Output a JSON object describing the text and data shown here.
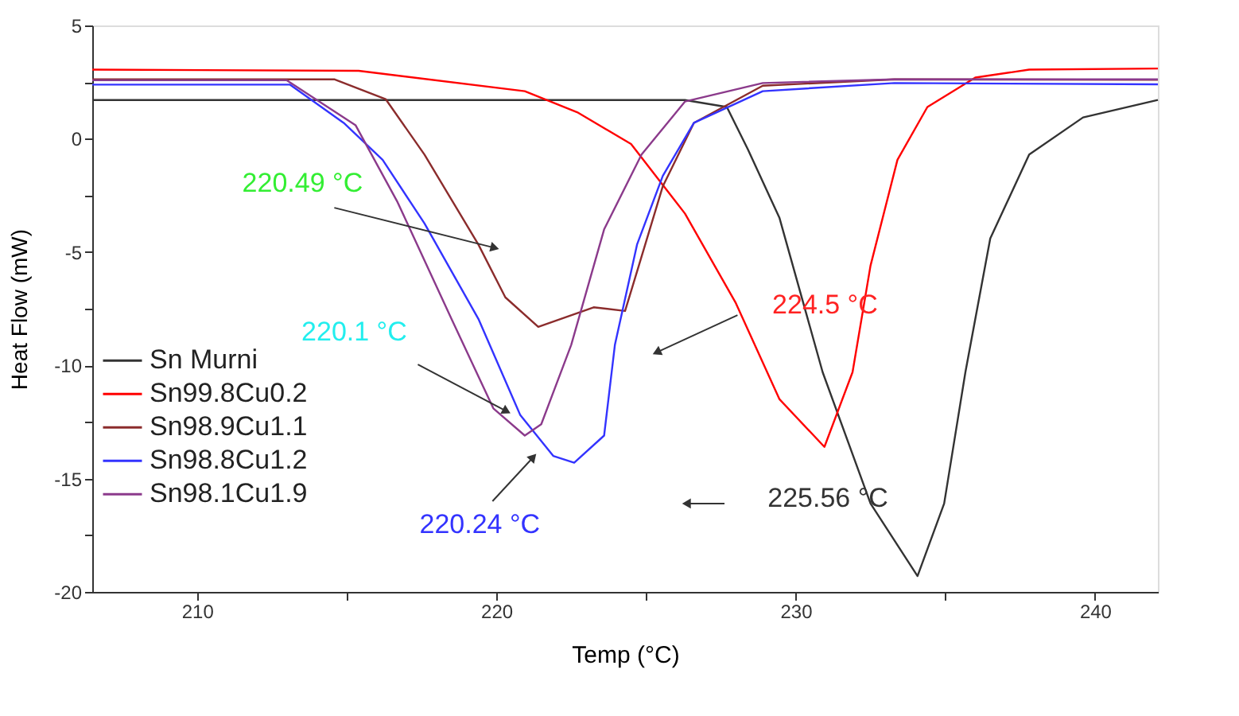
{
  "chart_data": {
    "type": "line",
    "xlabel": "Temp (°C)",
    "ylabel": "Heat Flow (mW)",
    "xlim": [
      206.5,
      242.1
    ],
    "ylim": [
      -20,
      5
    ],
    "xticks": [
      210,
      {
        "value": 215,
        "label": null
      },
      220,
      {
        "value": 225,
        "label": null
      },
      230,
      {
        "value": 235,
        "label": null
      },
      240
    ],
    "yticks": [
      5,
      {
        "value": 2.5,
        "label": null
      },
      0,
      {
        "value": -2.5,
        "label": null
      },
      -5,
      {
        "value": -7.5,
        "label": null
      },
      -10,
      {
        "value": -12.5,
        "label": null
      },
      -15,
      {
        "value": -17.5,
        "label": null
      },
      -20
    ],
    "grid": false,
    "legend": "left",
    "marker": "none",
    "line_style": "solid",
    "series": [
      {
        "name": "Sn Murni",
        "color": "#333333",
        "x": [
          206.5,
          215,
          222,
          226.3,
          227.7,
          228.4,
          229.46,
          230.9,
          232.5,
          234.07,
          234.96,
          235.67,
          236.5,
          237.8,
          239.6,
          242.1
        ],
        "values": [
          1.71,
          1.71,
          1.71,
          1.71,
          1.4,
          -0.46,
          -3.5,
          -10.3,
          -16.1,
          -19.3,
          -16.1,
          -10.3,
          -4.4,
          -0.7,
          0.94,
          1.71
        ]
      },
      {
        "name": "Sn99.8Cu0.2",
        "color": "#ff0000",
        "x": [
          206.5,
          215.4,
          220.95,
          222.7,
          224.5,
          226.3,
          228.0,
          229.46,
          230.96,
          231.9,
          232.5,
          233.4,
          234.4,
          236.0,
          237.8,
          242.1
        ],
        "values": [
          3.05,
          3.0,
          2.1,
          1.17,
          -0.23,
          -3.3,
          -7.25,
          -11.5,
          -13.6,
          -10.3,
          -5.6,
          -0.93,
          1.4,
          2.7,
          3.05,
          3.1
        ]
      },
      {
        "name": "Sn98.9Cu1.1",
        "color": "#8b2c2c",
        "x": [
          206.5,
          214.6,
          216.3,
          217.6,
          219.4,
          220.3,
          221.4,
          223.25,
          224.3,
          224.76,
          225.56,
          226.6,
          228.9,
          233.3,
          242.1
        ],
        "values": [
          2.62,
          2.62,
          1.75,
          -0.7,
          -4.67,
          -7.0,
          -8.3,
          -7.44,
          -7.6,
          -5.6,
          -2.1,
          0.7,
          2.34,
          2.62,
          2.6
        ]
      },
      {
        "name": "Sn98.8Cu1.2",
        "color": "#3333ff",
        "x": [
          206.5,
          213.1,
          214.9,
          216.2,
          217.6,
          219.4,
          220.8,
          221.9,
          222.6,
          223.6,
          223.96,
          224.7,
          225.56,
          226.6,
          228.9,
          233.3,
          242.1
        ],
        "values": [
          2.39,
          2.39,
          0.7,
          -0.93,
          -3.74,
          -7.95,
          -12.2,
          -14.0,
          -14.3,
          -13.1,
          -9.1,
          -4.67,
          -1.64,
          0.7,
          2.1,
          2.46,
          2.4
        ]
      },
      {
        "name": "Sn98.1Cu1.9",
        "color": "#8b3a8b",
        "x": [
          206.5,
          213.0,
          215.3,
          216.7,
          218.5,
          219.9,
          220.95,
          221.5,
          222.5,
          223.6,
          224.85,
          226.3,
          228.9,
          233.3,
          242.1
        ],
        "values": [
          2.58,
          2.58,
          0.59,
          -2.8,
          -7.95,
          -11.9,
          -13.1,
          -12.6,
          -9.1,
          -4.0,
          -0.7,
          1.64,
          2.46,
          2.62,
          2.62
        ]
      }
    ],
    "annotations": [
      {
        "text": "220.49 °C",
        "x": 219.9,
        "y": -4.8
      },
      {
        "text": "220.1 °C",
        "x": 220.3,
        "y": -12.0
      },
      {
        "text": "224.5 °C",
        "x": 225.4,
        "y": -9.4
      },
      {
        "text": "220.24 °C",
        "x": 221.2,
        "y": -14.1
      },
      {
        "text": "225.56 °C",
        "x": 226.4,
        "y": -16.1
      }
    ]
  }
}
